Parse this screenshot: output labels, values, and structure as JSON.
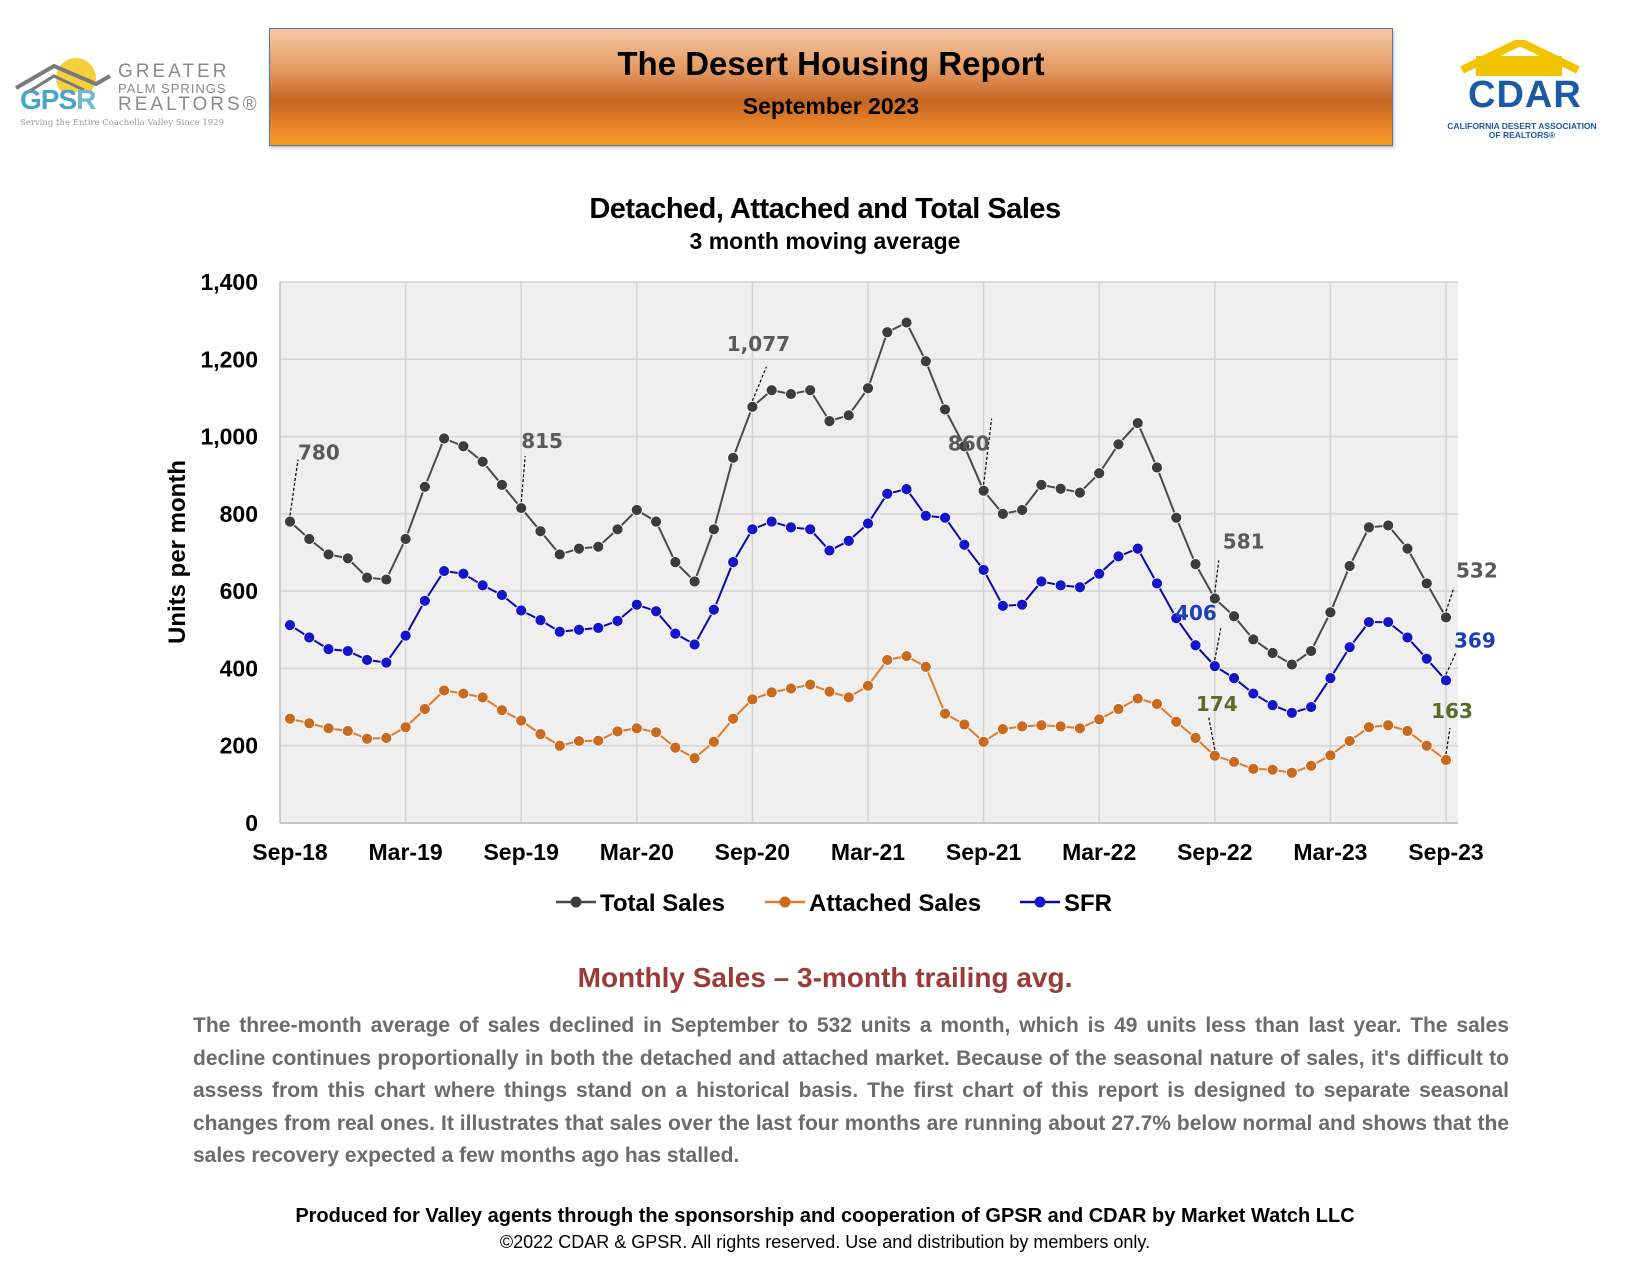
{
  "header": {
    "title": "The Desert Housing Report",
    "subtitle": "September 2023"
  },
  "gpsr_logo": {
    "mark": "GPS",
    "mark_r": "R",
    "line1": "GREATER",
    "line2": "PALM SPRINGS",
    "line3": "REALTORS®",
    "tagline": "Serving the Entire Coachella Valley Since 1929"
  },
  "cdar_logo": {
    "name": "CDAR",
    "line1": "CALIFORNIA DESERT ASSOCIATION",
    "line2": "OF REALTORS®"
  },
  "colors": {
    "total": "#4a4a4a",
    "attached": "#e07b2a",
    "sfr": "#0a0aa8",
    "label_attached": "#5a6b2a",
    "heading": "#9a3b36"
  },
  "chart_data": {
    "type": "line",
    "title": "Detached, Attached and Total Sales",
    "subtitle": "3 month moving average",
    "ylabel": "Units per month",
    "xlabel": "",
    "ylim": [
      0,
      1400
    ],
    "yticks": [
      0,
      200,
      400,
      600,
      800,
      1000,
      1200,
      1400
    ],
    "ytick_labels": [
      "0",
      "200",
      "400",
      "600",
      "800",
      "1,000",
      "1,200",
      "1,400"
    ],
    "xtick_labels": [
      "Sep-18",
      "Mar-19",
      "Sep-19",
      "Mar-20",
      "Sep-20",
      "Mar-21",
      "Sep-21",
      "Mar-22",
      "Sep-22",
      "Mar-23",
      "Sep-23"
    ],
    "x_start": "Sep-18",
    "x_end": "Sep-23",
    "grid": true,
    "legend_position": "bottom",
    "series": [
      {
        "name": "Total Sales",
        "values": [
          780,
          735,
          695,
          685,
          635,
          630,
          735,
          870,
          995,
          975,
          935,
          875,
          815,
          755,
          695,
          710,
          715,
          760,
          810,
          780,
          675,
          625,
          760,
          945,
          1077,
          1120,
          1110,
          1120,
          1040,
          1055,
          1125,
          1270,
          1295,
          1195,
          1070,
          975,
          860,
          800,
          810,
          875,
          865,
          855,
          905,
          980,
          1035,
          920,
          790,
          670,
          581,
          535,
          475,
          440,
          410,
          445,
          545,
          665,
          765,
          770,
          710,
          620,
          532
        ]
      },
      {
        "name": "Attached Sales",
        "values": [
          270,
          258,
          245,
          238,
          218,
          220,
          248,
          295,
          343,
          335,
          325,
          292,
          265,
          230,
          200,
          212,
          213,
          237,
          245,
          235,
          195,
          168,
          210,
          270,
          320,
          338,
          348,
          358,
          340,
          325,
          355,
          422,
          432,
          404,
          283,
          255,
          210,
          243,
          250,
          253,
          250,
          245,
          268,
          295,
          322,
          308,
          262,
          220,
          174,
          158,
          140,
          138,
          130,
          148,
          175,
          212,
          248,
          253,
          238,
          200,
          163
        ]
      },
      {
        "name": "SFR",
        "values": [
          512,
          480,
          450,
          445,
          422,
          415,
          485,
          575,
          652,
          645,
          615,
          590,
          550,
          525,
          495,
          500,
          505,
          523,
          565,
          548,
          490,
          462,
          552,
          675,
          760,
          780,
          765,
          760,
          705,
          730,
          775,
          852,
          864,
          795,
          790,
          720,
          655,
          562,
          565,
          625,
          615,
          610,
          645,
          690,
          710,
          620,
          530,
          460,
          406,
          375,
          335,
          305,
          285,
          300,
          375,
          455,
          520,
          520,
          480,
          425,
          369
        ]
      }
    ],
    "annotations": [
      {
        "series": 0,
        "index": 0,
        "label": "780"
      },
      {
        "series": 0,
        "index": 12,
        "label": "815"
      },
      {
        "series": 0,
        "index": 24,
        "label": "1,077"
      },
      {
        "series": 0,
        "index": 36,
        "label": "860"
      },
      {
        "series": 0,
        "index": 48,
        "label": "581"
      },
      {
        "series": 0,
        "index": 60,
        "label": "532"
      },
      {
        "series": 2,
        "index": 48,
        "label": "406"
      },
      {
        "series": 2,
        "index": 60,
        "label": "369"
      },
      {
        "series": 1,
        "index": 48,
        "label": "174"
      },
      {
        "series": 1,
        "index": 60,
        "label": "163"
      }
    ]
  },
  "section": {
    "heading": "Monthly Sales – 3-month trailing avg.",
    "body": "The three-month average of sales declined in September to 532 units a month, which is 49 units less than last year. The sales decline continues proportionally in both the detached and attached market. Because of the seasonal nature of sales, it's difficult to assess from this chart where things stand on a historical basis. The first chart of this report is designed to separate seasonal changes from real ones. It illustrates that sales over the last four months are running about 27.7% below normal and shows that the sales recovery expected a few months ago has stalled."
  },
  "footer": {
    "produced": "Produced for Valley agents through the sponsorship and cooperation of GPSR and CDAR by Market Watch LLC",
    "copyright": "©2022 CDAR & GPSR.  All rights reserved.  Use and distribution by members only."
  }
}
